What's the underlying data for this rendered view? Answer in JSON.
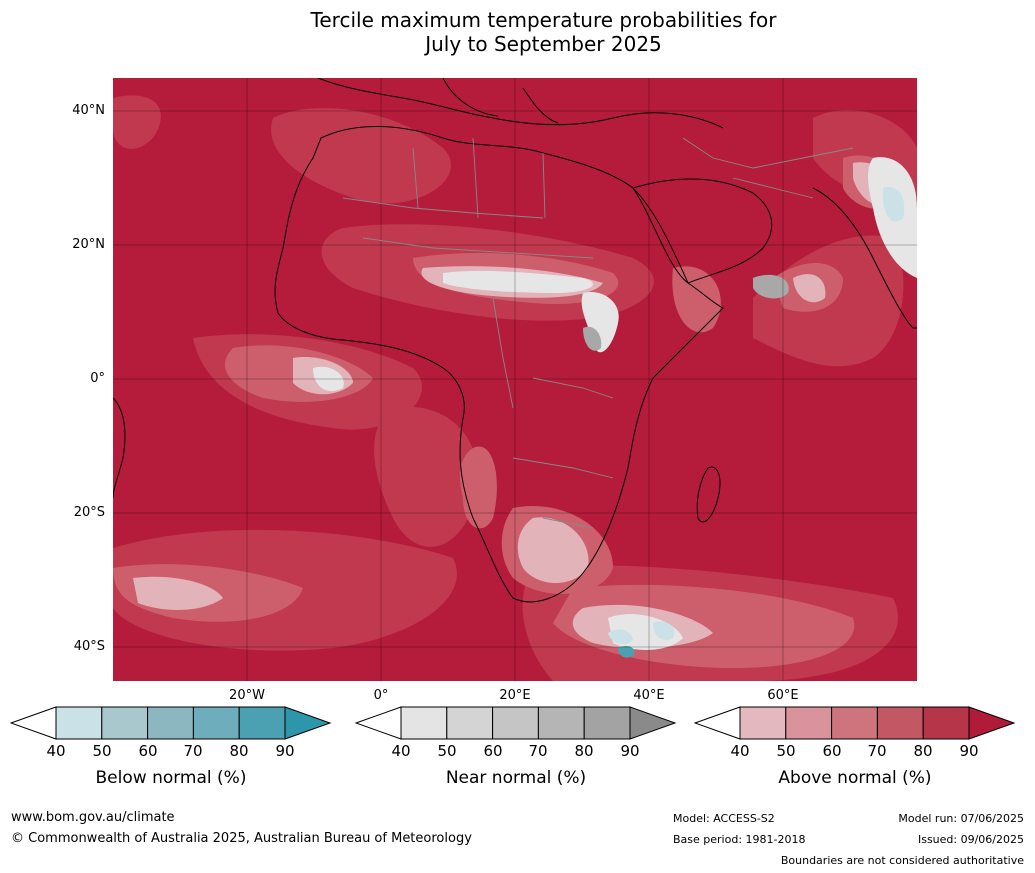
{
  "title_line1": "Tercile maximum temperature probabilities for",
  "title_line2": "July to September 2025",
  "lat_labels": [
    "40°N",
    "20°N",
    "0°",
    "20°S",
    "40°S"
  ],
  "lon_labels": [
    "20°W",
    "0°",
    "20°E",
    "40°E",
    "60°E"
  ],
  "legends": [
    {
      "label": "Below normal (%)",
      "ticks": [
        "40",
        "50",
        "60",
        "70",
        "80",
        "90"
      ],
      "colors": [
        "#c9e1e7",
        "#a9c8ce",
        "#8cb7c1",
        "#6eadbb",
        "#4ba0b2"
      ],
      "extend_color": "#2e96ab"
    },
    {
      "label": "Near normal (%)",
      "ticks": [
        "40",
        "50",
        "60",
        "70",
        "80",
        "90"
      ],
      "colors": [
        "#e4e4e4",
        "#d4d4d4",
        "#c5c5c5",
        "#b5b5b5",
        "#a3a3a3"
      ],
      "extend_color": "#8a8a8a"
    },
    {
      "label": "Above normal (%)",
      "ticks": [
        "40",
        "50",
        "60",
        "70",
        "80",
        "90"
      ],
      "colors": [
        "#e3b9bf",
        "#d9939c",
        "#cd747d",
        "#c35865",
        "#b73549"
      ],
      "extend_color": "#b01b3a"
    }
  ],
  "footer": {
    "website": "www.bom.gov.au/climate",
    "copyright": "© Commonwealth of Australia 2025, Australian Bureau of Meteorology",
    "model": "Model: ACCESS-S2",
    "base_period": "Base period: 1981-2018",
    "model_run": "Model run: 07/06/2025",
    "issued": "Issued: 09/06/2025",
    "disclaimer": "Boundaries are not considered authoritative"
  },
  "map_colors": {
    "above_90": "#b51c3b",
    "above_80": "#c0394e",
    "above_70": "#cd5f6c",
    "above_60": "#d98a94",
    "above_50": "#e3b3ba",
    "near": "#e6e6e6",
    "near_dark": "#a8a8a8",
    "below": "#c9e1e7",
    "below_dark": "#4ba0b2"
  }
}
